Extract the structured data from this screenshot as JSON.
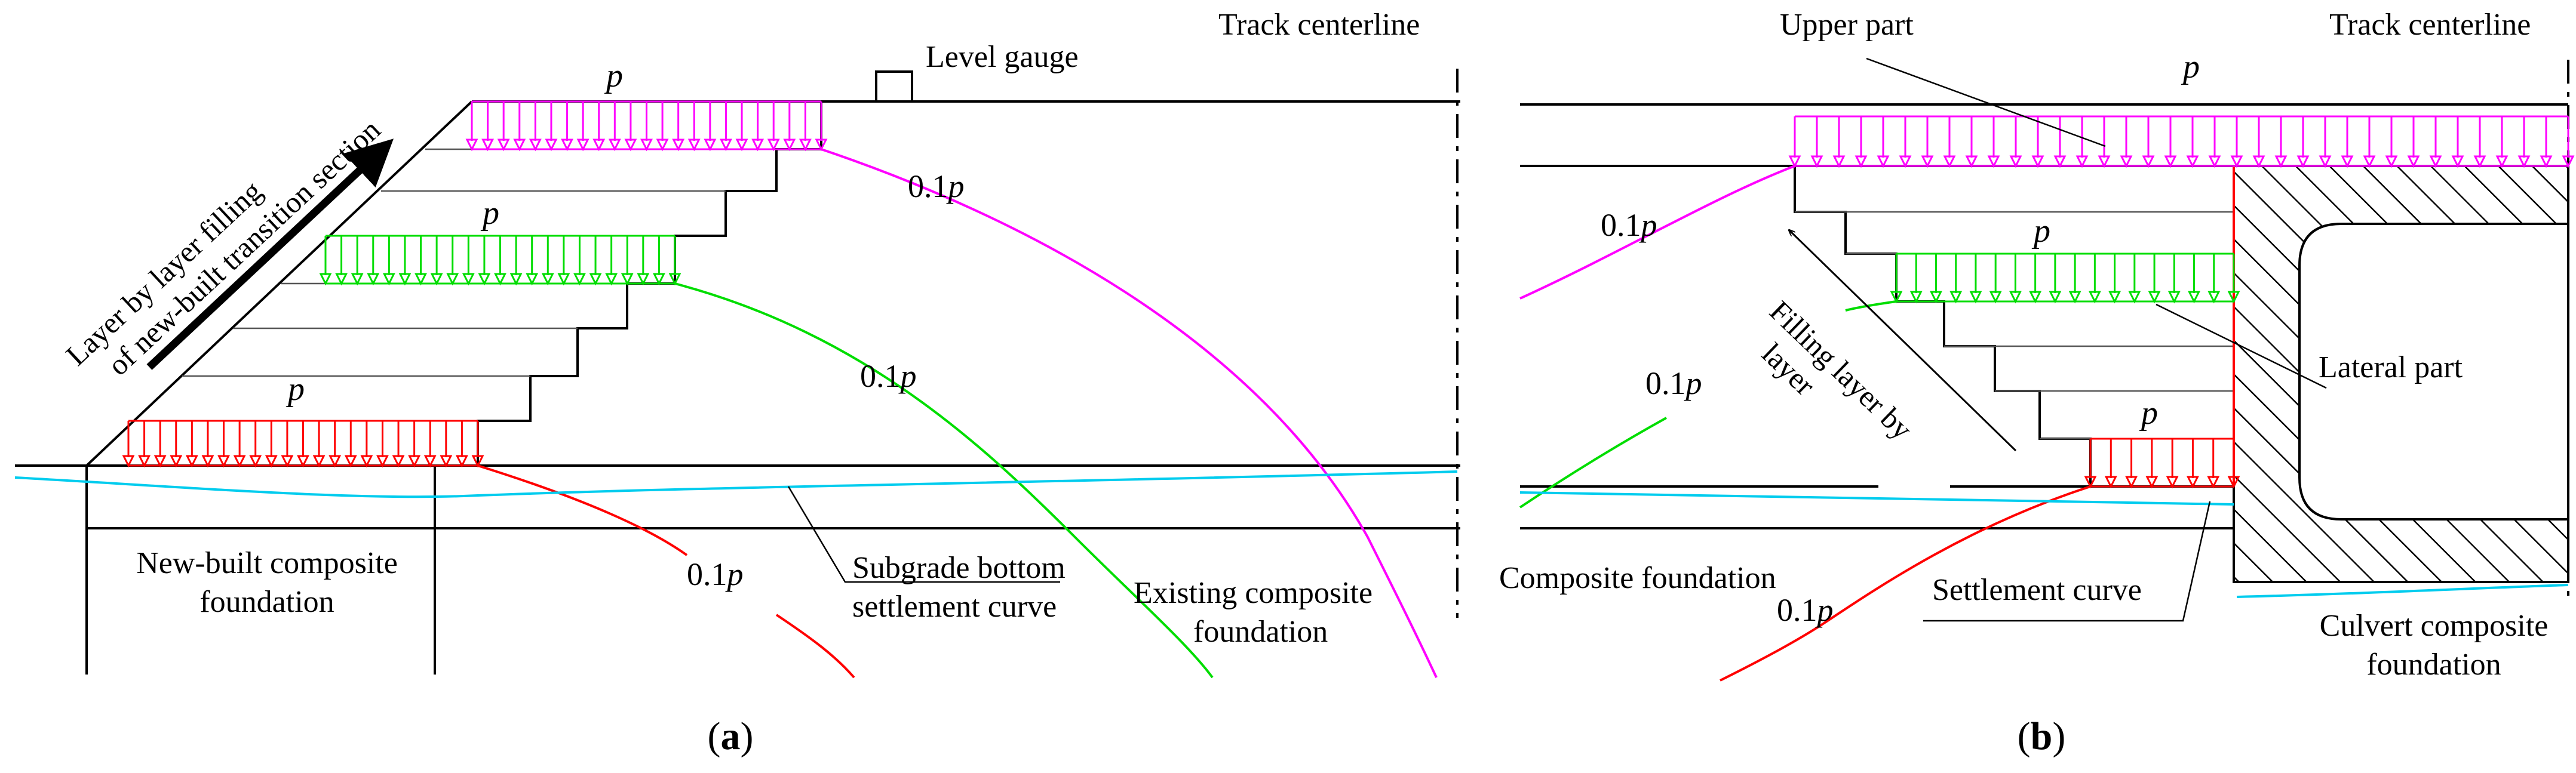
{
  "panel_a": {
    "track_centerline": "Track centerline",
    "level_gauge": "Level gauge",
    "load_symbol": "p",
    "contour_label": "0.1p",
    "contour_label_main": "0.1",
    "contour_label_var": "p",
    "filling_line1": "Layer by layer filling",
    "filling_line2": "of new-built transition section",
    "new_foundation_line1": "New-built composite",
    "new_foundation_line2": "foundation",
    "subgrade_line1": "Subgrade bottom",
    "subgrade_line2": "settlement curve",
    "existing_line1": "Existing composite",
    "existing_line2": "foundation",
    "caption_open": "(",
    "caption_letter": "a",
    "caption_close": ")"
  },
  "panel_b": {
    "upper_part": "Upper part",
    "track_centerline": "Track centerline",
    "load_symbol": "p",
    "contour_label_main": "0.1",
    "contour_label_var": "p",
    "lateral_part": "Lateral part",
    "filling_line1": "Filling layer by",
    "filling_line2": "layer",
    "composite_foundation": "Composite foundation",
    "settlement_curve": "Settlement curve",
    "culvert_line1": "Culvert composite",
    "culvert_line2": "foundation",
    "caption_open": "(",
    "caption_letter": "b",
    "caption_close": ")"
  },
  "colors": {
    "top_load": "#ff00ff",
    "middle_load": "#00dd00",
    "bottom_load": "#ff0000",
    "settlement_curve": "#00ccee",
    "structure": "#000000"
  }
}
